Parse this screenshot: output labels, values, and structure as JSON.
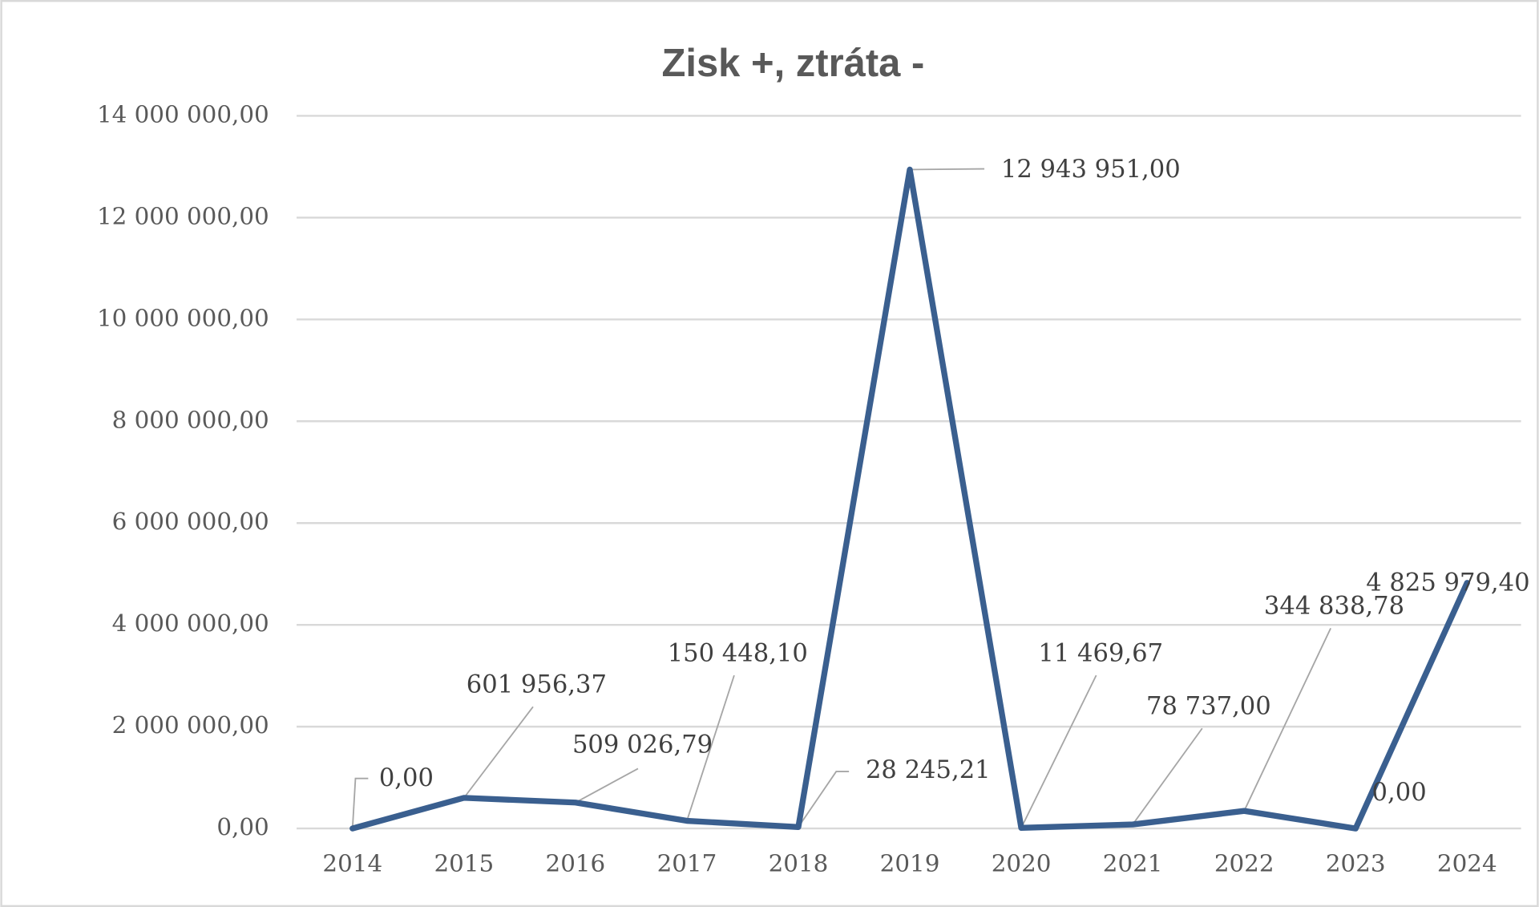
{
  "chart_data": {
    "type": "line",
    "title": "Zisk +, ztráta -",
    "categories": [
      "2014",
      "2015",
      "2016",
      "2017",
      "2018",
      "2019",
      "2020",
      "2021",
      "2022",
      "2023",
      "2024"
    ],
    "values": [
      0,
      601956.37,
      509026.79,
      150448.1,
      28245.21,
      12943951,
      11469.67,
      78737,
      344838.78,
      0,
      4825979.4
    ],
    "value_labels": [
      "0,00",
      "601 956,37",
      "509 026,79",
      "150 448,10",
      "28 245,21",
      "12 943 951,00",
      "11 469,67",
      "78 737,00",
      "344 838,78",
      "0,00",
      "4 825 979,40"
    ],
    "color": "#3a5f8f",
    "ylim": [
      0,
      14000000
    ],
    "yticks": [
      {
        "value": 0,
        "label": "0,00"
      },
      {
        "value": 2000000,
        "label": "2 000 000,00"
      },
      {
        "value": 4000000,
        "label": "4 000 000,00"
      },
      {
        "value": 6000000,
        "label": "6 000 000,00"
      },
      {
        "value": 8000000,
        "label": "8 000 000,00"
      },
      {
        "value": 10000000,
        "label": "10 000 000,00"
      },
      {
        "value": 12000000,
        "label": "12 000 000,00"
      },
      {
        "value": 14000000,
        "label": "14 000 000,00"
      }
    ],
    "grid": true
  }
}
